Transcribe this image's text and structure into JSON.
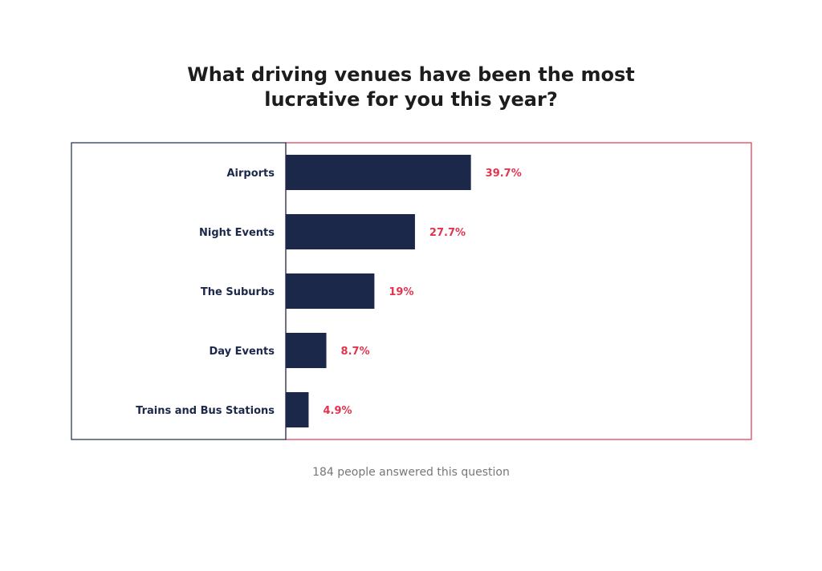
{
  "chart_data": {
    "type": "bar",
    "orientation": "horizontal",
    "title_lines": [
      "What driving venues have been the most",
      "lucrative for you this year?"
    ],
    "categories": [
      "Airports",
      "Night Events",
      "The Suburbs",
      "Day Events",
      "Trains and Bus Stations"
    ],
    "values": [
      39.7,
      27.7,
      19,
      8.7,
      4.9
    ],
    "value_labels": [
      "39.7%",
      "27.7%",
      "19%",
      "8.7%",
      "4.9%"
    ],
    "unit": "%",
    "xlim": [
      0,
      100
    ],
    "grid": false,
    "legend": "none",
    "colors": {
      "bar": "#1c2849",
      "value_label": "#e0354f",
      "category_label": "#1c2849",
      "frame_left": "#1c2849",
      "frame_right": "#e0354f"
    }
  },
  "footnote": "184 people answered this question"
}
